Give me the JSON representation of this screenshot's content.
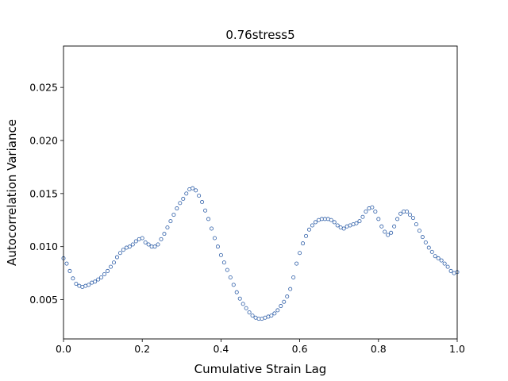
{
  "chart_data": {
    "type": "scatter",
    "title": "0.76stress5",
    "xlabel": "Cumulative Strain Lag",
    "ylabel": "Autocorrelation Variance",
    "xlim": [
      0.0,
      1.0
    ],
    "ylim": [
      0.0013,
      0.0289
    ],
    "xticks": [
      0.0,
      0.2,
      0.4,
      0.6,
      0.8,
      1.0
    ],
    "xtick_labels": [
      "0.0",
      "0.2",
      "0.4",
      "0.6",
      "0.8",
      "1.0"
    ],
    "yticks": [
      0.005,
      0.01,
      0.015,
      0.02,
      0.025
    ],
    "ytick_labels": [
      "0.005",
      "0.010",
      "0.015",
      "0.020",
      "0.025"
    ],
    "grid": false,
    "marker_color": "#2f5fa8",
    "series": [
      {
        "x": [
          0.0,
          0.008,
          0.016,
          0.024,
          0.032,
          0.04,
          0.048,
          0.056,
          0.064,
          0.072,
          0.08,
          0.088,
          0.096,
          0.104,
          0.112,
          0.12,
          0.128,
          0.136,
          0.144,
          0.152,
          0.16,
          0.168,
          0.176,
          0.184,
          0.192,
          0.2,
          0.208,
          0.216,
          0.224,
          0.232,
          0.24,
          0.248,
          0.256,
          0.264,
          0.272,
          0.28,
          0.288,
          0.296,
          0.304,
          0.312,
          0.32,
          0.328,
          0.336,
          0.344,
          0.352,
          0.36,
          0.368,
          0.376,
          0.384,
          0.392,
          0.4,
          0.408,
          0.416,
          0.424,
          0.432,
          0.44,
          0.448,
          0.456,
          0.464,
          0.472,
          0.48,
          0.488,
          0.496,
          0.504,
          0.512,
          0.52,
          0.528,
          0.536,
          0.544,
          0.552,
          0.56,
          0.568,
          0.576,
          0.584,
          0.592,
          0.6,
          0.608,
          0.616,
          0.624,
          0.632,
          0.64,
          0.648,
          0.656,
          0.664,
          0.672,
          0.68,
          0.688,
          0.696,
          0.704,
          0.712,
          0.72,
          0.728,
          0.736,
          0.744,
          0.752,
          0.76,
          0.768,
          0.776,
          0.784,
          0.792,
          0.8,
          0.808,
          0.816,
          0.824,
          0.832,
          0.84,
          0.848,
          0.856,
          0.864,
          0.872,
          0.88,
          0.888,
          0.896,
          0.904,
          0.912,
          0.92,
          0.928,
          0.936,
          0.944,
          0.952,
          0.96,
          0.968,
          0.976,
          0.984,
          0.992,
          1.0
        ],
        "y": [
          0.0089,
          0.0084,
          0.0077,
          0.007,
          0.0065,
          0.0063,
          0.0062,
          0.0063,
          0.0064,
          0.0066,
          0.0067,
          0.0069,
          0.0071,
          0.0074,
          0.0077,
          0.0081,
          0.0085,
          0.009,
          0.0094,
          0.0097,
          0.0099,
          0.01,
          0.0102,
          0.0105,
          0.0107,
          0.0108,
          0.0104,
          0.0102,
          0.01,
          0.01,
          0.0102,
          0.0107,
          0.0112,
          0.0118,
          0.0124,
          0.013,
          0.0136,
          0.0141,
          0.0145,
          0.015,
          0.0154,
          0.0155,
          0.0153,
          0.0148,
          0.0142,
          0.0134,
          0.0126,
          0.0117,
          0.0108,
          0.01,
          0.0092,
          0.0085,
          0.0078,
          0.0071,
          0.0064,
          0.0057,
          0.0051,
          0.0046,
          0.0042,
          0.0038,
          0.0035,
          0.0033,
          0.0032,
          0.0032,
          0.0033,
          0.0034,
          0.0035,
          0.0037,
          0.004,
          0.0044,
          0.0048,
          0.0053,
          0.006,
          0.0071,
          0.0084,
          0.0094,
          0.0103,
          0.011,
          0.0116,
          0.012,
          0.0123,
          0.0125,
          0.0126,
          0.0126,
          0.0126,
          0.0125,
          0.0123,
          0.012,
          0.0118,
          0.0117,
          0.0119,
          0.012,
          0.0121,
          0.0122,
          0.0124,
          0.0128,
          0.0133,
          0.0136,
          0.0137,
          0.0133,
          0.0126,
          0.0119,
          0.0114,
          0.0111,
          0.0113,
          0.0119,
          0.0126,
          0.0131,
          0.0133,
          0.0133,
          0.013,
          0.0127,
          0.0121,
          0.0115,
          0.0109,
          0.0104,
          0.0099,
          0.0095,
          0.0091,
          0.0089,
          0.0087,
          0.0084,
          0.0081,
          0.0077,
          0.0075,
          0.0076
        ]
      }
    ]
  }
}
